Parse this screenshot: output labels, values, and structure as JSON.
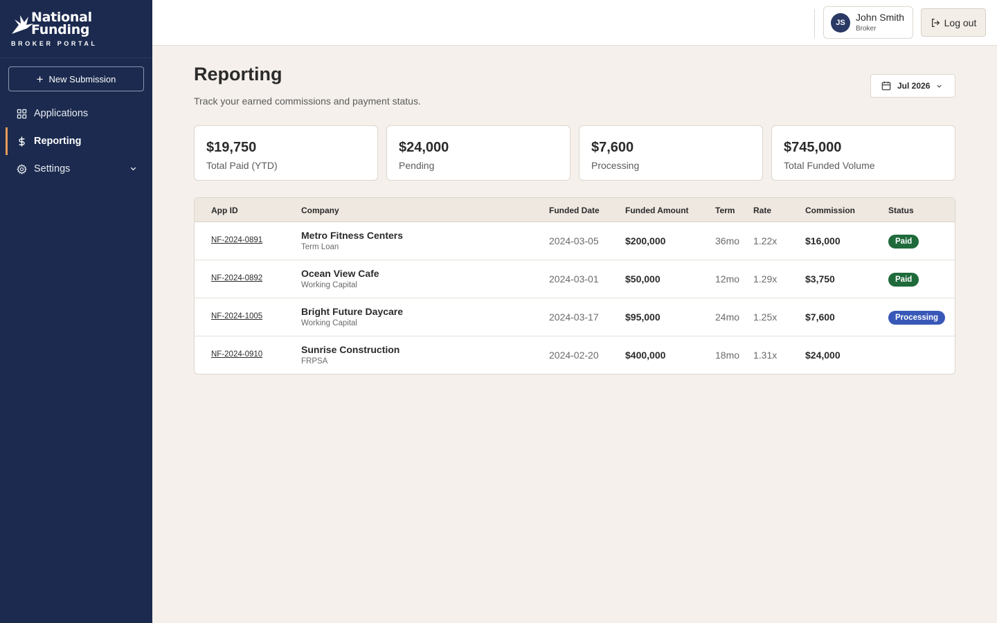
{
  "brand": {
    "name_line1": "National",
    "name_line2": "Funding",
    "subtitle": "BROKER PORTAL"
  },
  "sidebar": {
    "new_submission_label": "New Submission",
    "items": [
      {
        "label": "Applications",
        "icon": "grid-icon",
        "active": false
      },
      {
        "label": "Reporting",
        "icon": "dollar-icon",
        "active": true
      },
      {
        "label": "Settings",
        "icon": "gear-icon",
        "active": false,
        "expandable": true
      }
    ]
  },
  "header": {
    "user": {
      "initials": "JS",
      "name": "John Smith",
      "role": "Broker"
    },
    "logout_label": "Log out"
  },
  "page": {
    "title": "Reporting",
    "subtitle": "Track your earned commissions and payment status.",
    "period_label": "Jul 2026"
  },
  "stats": [
    {
      "value": "$19,750",
      "label": "Total Paid (YTD)"
    },
    {
      "value": "$24,000",
      "label": "Pending"
    },
    {
      "value": "$7,600",
      "label": "Processing"
    },
    {
      "value": "$745,000",
      "label": "Total Funded Volume"
    }
  ],
  "table": {
    "columns": [
      "App ID",
      "Company",
      "Funded Date",
      "Funded Amount",
      "Term",
      "Rate",
      "Commission",
      "Status"
    ],
    "rows": [
      {
        "app_id": "NF-2024-0891",
        "company": "Metro Fitness Centers",
        "product": "Term Loan",
        "funded_date": "2024-03-05",
        "funded_amount": "$200,000",
        "term": "36mo",
        "rate": "1.22x",
        "commission": "$16,000",
        "status": "Paid"
      },
      {
        "app_id": "NF-2024-0892",
        "company": "Ocean View Cafe",
        "product": "Working Capital",
        "funded_date": "2024-03-01",
        "funded_amount": "$50,000",
        "term": "12mo",
        "rate": "1.29x",
        "commission": "$3,750",
        "status": "Paid"
      },
      {
        "app_id": "NF-2024-1005",
        "company": "Bright Future Daycare",
        "product": "Working Capital",
        "funded_date": "2024-03-17",
        "funded_amount": "$95,000",
        "term": "24mo",
        "rate": "1.25x",
        "commission": "$7,600",
        "status": "Processing"
      },
      {
        "app_id": "NF-2024-0910",
        "company": "Sunrise Construction",
        "product": "FRPSA",
        "funded_date": "2024-02-20",
        "funded_amount": "$400,000",
        "term": "18mo",
        "rate": "1.31x",
        "commission": "$24,000",
        "status": ""
      }
    ]
  },
  "colors": {
    "sidebar_bg": "#1b2a4e",
    "accent": "#e89a5a",
    "page_bg": "#f5f0eb",
    "paid": "#1f6a3b",
    "processing": "#3858b8"
  }
}
